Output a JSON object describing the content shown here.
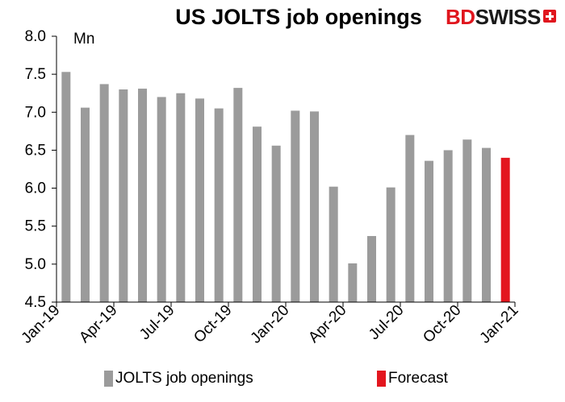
{
  "header": {
    "title": "US JOLTS job openings",
    "logo_bd": "BD",
    "logo_swiss": "SWISS"
  },
  "colors": {
    "actual": "#9b9b9b",
    "forecast": "#e3161e",
    "logo_red": "#e0161e"
  },
  "chart_data": {
    "type": "bar",
    "title": "US JOLTS job openings",
    "ylabel": "Mn",
    "ylim": [
      4.5,
      8.0
    ],
    "yticks": [
      "8.0",
      "7.5",
      "7.0",
      "6.5",
      "6.0",
      "5.5",
      "5.0",
      "4.5"
    ],
    "xtick_labels": [
      "Jan-19",
      "Apr-19",
      "Jul-19",
      "Oct-19",
      "Jan-20",
      "Apr-20",
      "Jul-20",
      "Oct-20",
      "Jan-21"
    ],
    "categories": [
      "Jan-19",
      "Feb-19",
      "Mar-19",
      "Apr-19",
      "May-19",
      "Jun-19",
      "Jul-19",
      "Aug-19",
      "Sep-19",
      "Oct-19",
      "Nov-19",
      "Dec-19",
      "Jan-20",
      "Feb-20",
      "Mar-20",
      "Apr-20",
      "May-20",
      "Jun-20",
      "Jul-20",
      "Aug-20",
      "Sep-20",
      "Oct-20",
      "Nov-20",
      "Dec-20",
      "Jan-21"
    ],
    "series": [
      {
        "name": "JOLTS job openings",
        "color": "#9b9b9b",
        "values": [
          7.53,
          7.06,
          7.37,
          7.3,
          7.31,
          7.2,
          7.25,
          7.18,
          7.05,
          7.32,
          6.81,
          6.56,
          7.02,
          7.01,
          6.02,
          5.01,
          5.37,
          6.01,
          6.7,
          6.36,
          6.5,
          6.64,
          6.53,
          null,
          null
        ]
      },
      {
        "name": "Forecast",
        "color": "#e3161e",
        "values": [
          null,
          null,
          null,
          null,
          null,
          null,
          null,
          null,
          null,
          null,
          null,
          null,
          null,
          null,
          null,
          null,
          null,
          null,
          null,
          null,
          null,
          null,
          null,
          6.4,
          null
        ]
      }
    ],
    "grid": false,
    "legend_position": "bottom"
  }
}
